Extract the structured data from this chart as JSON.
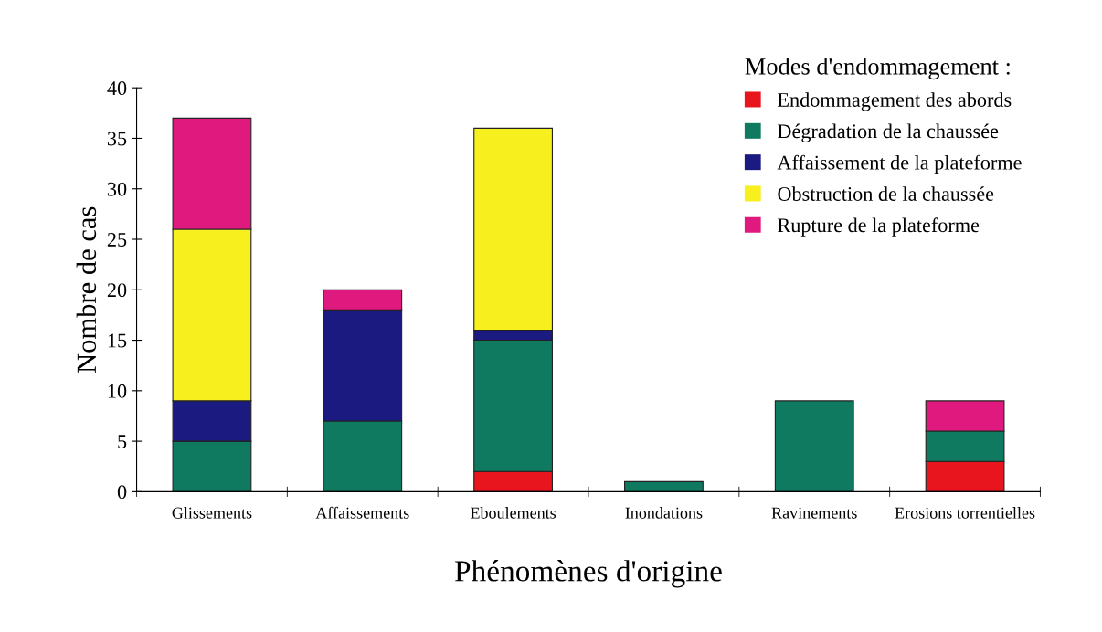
{
  "chart_data": {
    "type": "bar",
    "stacked": true,
    "categories": [
      "Glissements",
      "Affaissements",
      "Eboulements",
      "Inondations",
      "Ravinements",
      "Erosions torrentielles"
    ],
    "series": [
      {
        "name": "Endommagement des abords",
        "color": "#e8141e",
        "values": [
          0,
          0,
          2,
          0,
          0,
          3
        ]
      },
      {
        "name": "Dégradation de la chaussée",
        "color": "#0f7a5f",
        "values": [
          5,
          7,
          13,
          1,
          9,
          3
        ]
      },
      {
        "name": "Affaissement de la plateforme",
        "color": "#1a1a80",
        "values": [
          4,
          11,
          1,
          0,
          0,
          0
        ]
      },
      {
        "name": "Obstruction de la chaussée",
        "color": "#f7ef1e",
        "values": [
          17,
          0,
          20,
          0,
          0,
          0
        ]
      },
      {
        "name": "Rupture de la plateforme",
        "color": "#e0197f",
        "values": [
          11,
          2,
          0,
          0,
          0,
          3
        ]
      }
    ],
    "ylabel": "Nombre de cas",
    "xlabel": "Phénomènes d'origine",
    "legend_title": "Modes d'endommagement :",
    "legend": "top right",
    "ylim": [
      0,
      40
    ],
    "yticks": [
      0,
      5,
      10,
      15,
      20,
      25,
      30,
      35,
      40
    ],
    "grid": false
  }
}
